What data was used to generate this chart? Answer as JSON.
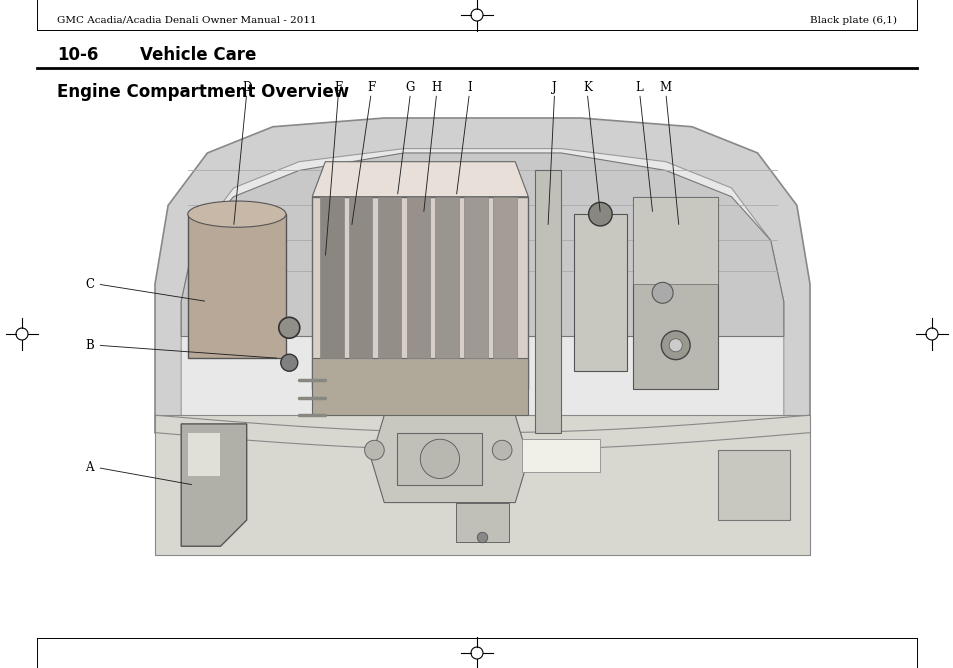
{
  "page_bg": "#ffffff",
  "header_left": "GMC Acadia/Acadia Denali Owner Manual - 2011",
  "header_right": "Black plate (6,1)",
  "section_label": "10-6",
  "section_title": "Vehicle Care",
  "subsection_title": "Engine Compartment Overview",
  "header_font_size": 7.5,
  "section_font_size": 12,
  "subsection_font_size": 12,
  "callout_labels_top": [
    "D",
    "E",
    "F",
    "G",
    "H",
    "I",
    "J",
    "K",
    "L",
    "M"
  ],
  "callout_labels_left": [
    "C",
    "B",
    "A"
  ],
  "text_color": "#000000"
}
